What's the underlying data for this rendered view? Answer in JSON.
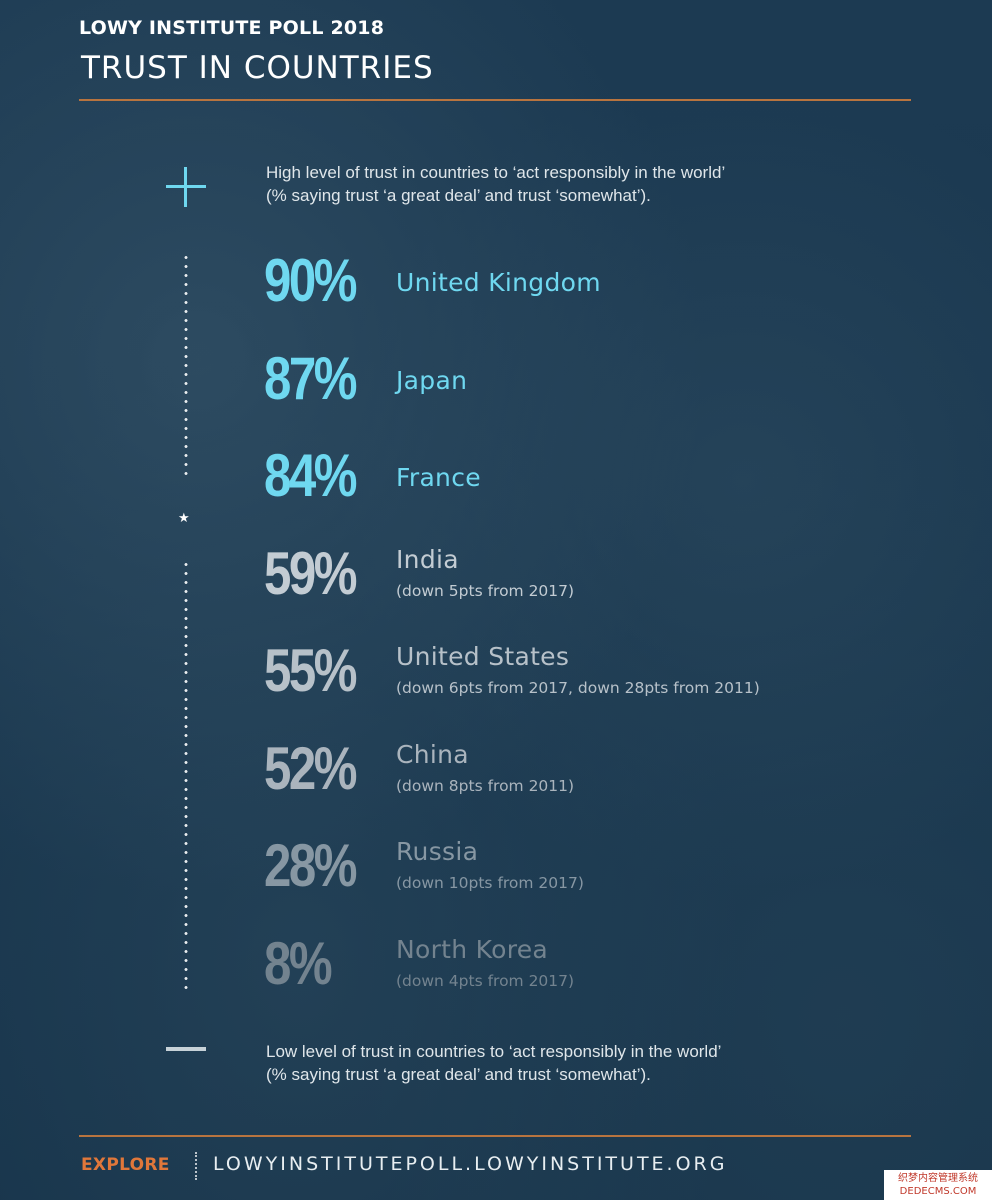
{
  "header": {
    "poll_name": "LOWY INSTITUTE POLL 2018",
    "title": "TRUST IN COUNTRIES"
  },
  "legend": {
    "high_line1": "High level of trust in countries to ‘act responsibly in the world’",
    "high_line2": "(% saying trust ‘a great deal’ and trust ‘somewhat’).",
    "low_line1": "Low level of trust in countries to ‘act responsibly in the world’",
    "low_line2": "(% saying trust ‘a great deal’ and trust ‘somewhat’).",
    "high_icon": "plus-icon",
    "low_icon": "minus-icon",
    "divider_icon": "star-icon"
  },
  "colors": {
    "background": "#1a3850",
    "accent_rule": "#b8743f",
    "high_trust": "#6fd8f0",
    "explore": "#e0773a"
  },
  "chart_data": {
    "type": "table",
    "title": "TRUST IN COUNTRIES",
    "rows": [
      {
        "value": 90,
        "label": "90%",
        "country": "United Kingdom",
        "note": "",
        "color": "#6fd8f0"
      },
      {
        "value": 87,
        "label": "87%",
        "country": "Japan",
        "note": "",
        "color": "#6fd8f0"
      },
      {
        "value": 84,
        "label": "84%",
        "country": "France",
        "note": "",
        "color": "#6fd8f0"
      },
      {
        "value": 59,
        "label": "59%",
        "country": "India",
        "note": "(down 5pts from 2017)",
        "color": "#c3ccd3"
      },
      {
        "value": 55,
        "label": "55%",
        "country": "United States",
        "note": "(down 6pts from 2017, down 28pts from 2011)",
        "color": "#b7c1c9"
      },
      {
        "value": 52,
        "label": "52%",
        "country": "China",
        "note": "(down 8pts from 2011)",
        "color": "#aab4bd"
      },
      {
        "value": 28,
        "label": "28%",
        "country": "Russia",
        "note": "(down 10pts from 2017)",
        "color": "#8797a3"
      },
      {
        "value": 8,
        "label": "8%",
        "country": "North Korea",
        "note": "(down 4pts from 2017)",
        "color": "#73838f"
      }
    ]
  },
  "footer": {
    "explore_label": "EXPLORE",
    "url": "LOWYINSTITUTEPOLL.LOWYINSTITUTE.ORG"
  },
  "watermark": {
    "line1": "织梦内容管理系统",
    "line2": "DEDECMS.COM"
  }
}
